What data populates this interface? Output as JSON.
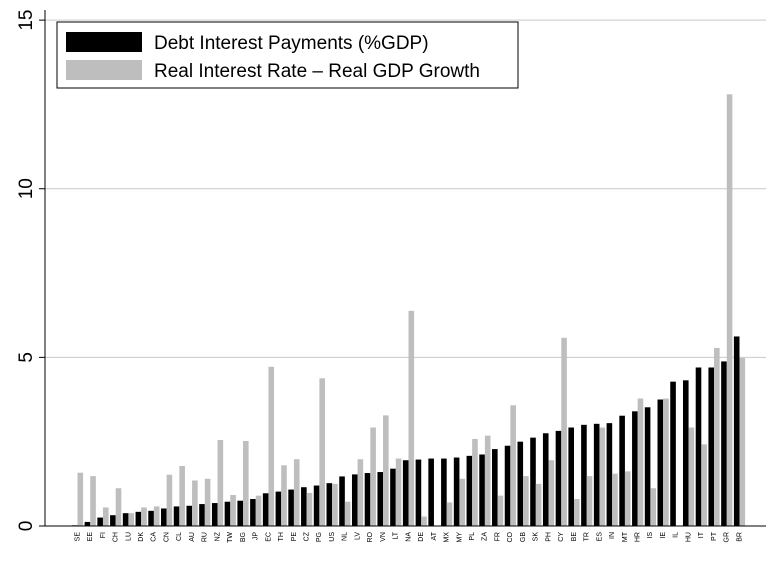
{
  "chart_data": {
    "type": "bar",
    "categories": [
      "SE",
      "EE",
      "FI",
      "CH",
      "LU",
      "DK",
      "CA",
      "CN",
      "CL",
      "AU",
      "RU",
      "NZ",
      "TW",
      "BG",
      "JP",
      "EC",
      "TH",
      "PE",
      "CZ",
      "PG",
      "US",
      "NL",
      "LV",
      "RO",
      "VN",
      "LT",
      "NA",
      "DE",
      "AT",
      "MX",
      "MY",
      "PL",
      "ZA",
      "FR",
      "CO",
      "GB",
      "SK",
      "PH",
      "CY",
      "BE",
      "TR",
      "ES",
      "IN",
      "MT",
      "HR",
      "IS",
      "IE",
      "IL",
      "HU",
      "IT",
      "PT",
      "GR",
      "BR"
    ],
    "series": [
      {
        "name": "Debt Interest Payments (%GDP)",
        "color": "#000000",
        "values": [
          0.02,
          0.12,
          0.25,
          0.32,
          0.38,
          0.42,
          0.45,
          0.52,
          0.58,
          0.6,
          0.65,
          0.68,
          0.72,
          0.75,
          0.8,
          0.97,
          1.02,
          1.08,
          1.15,
          1.2,
          1.27,
          1.47,
          1.53,
          1.57,
          1.6,
          1.7,
          1.95,
          1.97,
          2.0,
          2.0,
          2.03,
          2.08,
          2.12,
          2.28,
          2.38,
          2.5,
          2.62,
          2.75,
          2.82,
          2.92,
          3.0,
          3.03,
          3.05,
          3.27,
          3.4,
          3.52,
          3.75,
          4.28,
          4.32,
          4.7,
          4.7,
          4.88,
          5.62
        ]
      },
      {
        "name": "Real Interest Rate – Real GDP Growth",
        "color": "#bebebe",
        "values": [
          1.58,
          1.48,
          0.55,
          1.12,
          0.38,
          0.55,
          0.58,
          1.52,
          1.78,
          1.35,
          1.4,
          2.55,
          0.92,
          2.52,
          0.9,
          4.72,
          1.8,
          1.98,
          0.98,
          4.38,
          1.25,
          0.72,
          1.98,
          2.92,
          3.28,
          2.0,
          6.38,
          0.28,
          0.0,
          0.7,
          1.4,
          2.58,
          2.68,
          0.9,
          3.58,
          1.48,
          1.25,
          1.95,
          5.58,
          0.8,
          1.48,
          2.92,
          1.55,
          1.62,
          3.78,
          1.12,
          3.78,
          0.0,
          2.92,
          2.42,
          5.28,
          12.8,
          4.98
        ]
      }
    ],
    "ylim": [
      0,
      15.3
    ],
    "yticks": [
      0,
      5,
      10,
      15
    ],
    "ytick_labels": [
      "0",
      "5",
      "10",
      "15"
    ],
    "grid": true,
    "legend_position": "top-left",
    "colors": {
      "grid": "#c9c9c9",
      "axis": "#000000"
    }
  }
}
